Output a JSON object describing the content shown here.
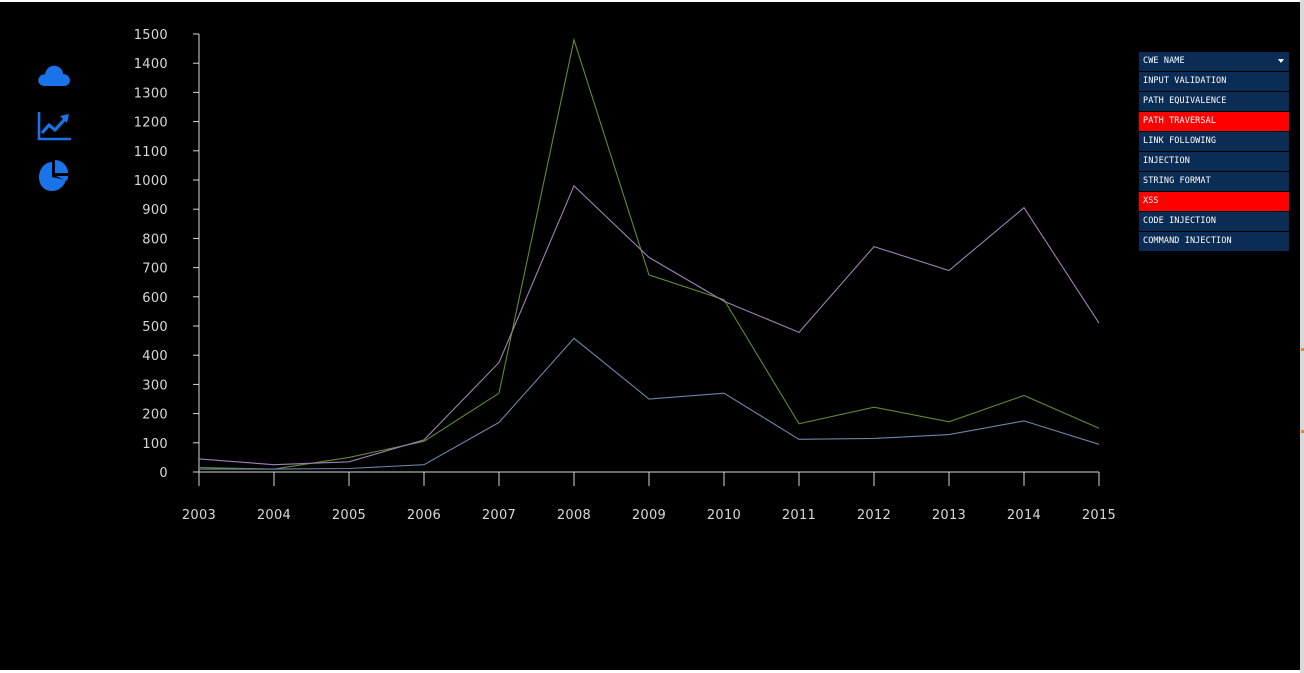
{
  "nav": {
    "icons": [
      "cloud-icon",
      "line-chart-icon",
      "pie-chart-icon"
    ],
    "icon_color": "#1a73e8"
  },
  "cwe_selector": {
    "header_label": "CWE NAME",
    "items": [
      {
        "label": "INPUT VALIDATION",
        "active": false
      },
      {
        "label": "PATH EQUIVALENCE",
        "active": false
      },
      {
        "label": "PATH TRAVERSAL",
        "active": true
      },
      {
        "label": "LINK FOLLOWING",
        "active": false
      },
      {
        "label": "INJECTION",
        "active": false
      },
      {
        "label": "STRING FORMAT",
        "active": false
      },
      {
        "label": "XSS",
        "active": true
      },
      {
        "label": "CODE INJECTION",
        "active": false
      },
      {
        "label": "COMMAND INJECTION",
        "active": false
      }
    ],
    "colors": {
      "item_bg": "#0b2c54",
      "active_bg": "#fe0000"
    }
  },
  "chart_data": {
    "type": "line",
    "x": [
      "2003",
      "2004",
      "2005",
      "2006",
      "2007",
      "2008",
      "2009",
      "2010",
      "2011",
      "2012",
      "2013",
      "2014",
      "2015"
    ],
    "y_ticks": [
      0,
      100,
      200,
      300,
      400,
      500,
      600,
      700,
      800,
      900,
      1000,
      1100,
      1200,
      1300,
      1400,
      1500
    ],
    "ylim": [
      0,
      1500
    ],
    "grid": false,
    "legend": "none",
    "series": [
      {
        "color": "#5e8a35",
        "values": [
          15,
          10,
          50,
          105,
          270,
          1480,
          675,
          590,
          165,
          222,
          172,
          262,
          150
        ]
      },
      {
        "color": "#a080b4",
        "values": [
          45,
          25,
          35,
          110,
          375,
          980,
          735,
          585,
          478,
          772,
          690,
          905,
          510
        ]
      },
      {
        "color": "#6a86a8",
        "values": [
          10,
          10,
          12,
          25,
          170,
          458,
          250,
          270,
          112,
          115,
          128,
          175,
          95
        ]
      }
    ]
  }
}
